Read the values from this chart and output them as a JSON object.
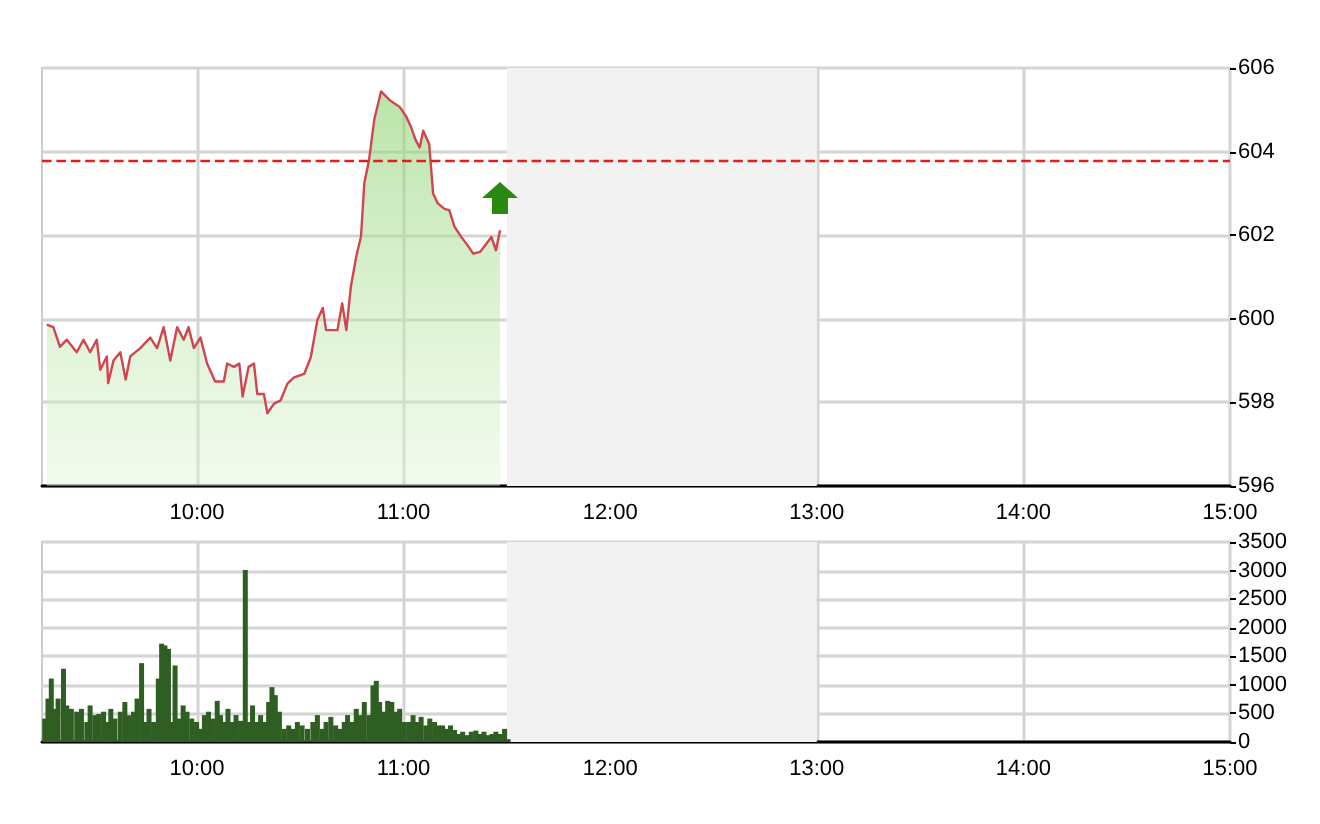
{
  "chart_data": [
    {
      "type": "area",
      "marker": "none",
      "grid": true,
      "x": [
        9.273,
        9.305,
        9.337,
        9.37,
        9.418,
        9.451,
        9.483,
        9.515,
        9.532,
        9.564,
        9.57,
        9.596,
        9.629,
        9.655,
        9.677,
        9.726,
        9.774,
        9.807,
        9.839,
        9.871,
        9.904,
        9.936,
        9.959,
        9.985,
        10.017,
        10.049,
        10.088,
        10.13,
        10.146,
        10.179,
        10.205,
        10.221,
        10.25,
        10.276,
        10.292,
        10.324,
        10.341,
        10.373,
        10.405,
        10.438,
        10.47,
        10.519,
        10.551,
        10.583,
        10.609,
        10.625,
        10.68,
        10.703,
        10.723,
        10.745,
        10.771,
        10.794,
        10.81,
        10.833,
        10.858,
        10.891,
        10.933,
        10.981,
        11.014,
        11.036,
        11.059,
        11.078,
        11.095,
        11.124,
        11.143,
        11.166,
        11.198,
        11.221,
        11.247,
        11.279,
        11.311,
        11.337,
        11.37,
        11.402,
        11.425,
        11.447,
        11.467
      ],
      "series": [
        {
          "color": "#d0454f",
          "values": [
            599.86,
            599.8,
            599.33,
            599.5,
            599.2,
            599.5,
            599.2,
            599.5,
            598.78,
            599.1,
            598.46,
            599.0,
            599.2,
            598.55,
            599.1,
            599.3,
            599.55,
            599.3,
            599.8,
            599.0,
            599.8,
            599.5,
            599.8,
            599.3,
            599.55,
            598.93,
            598.5,
            598.5,
            598.93,
            598.85,
            598.93,
            598.14,
            598.85,
            598.93,
            598.2,
            598.2,
            597.74,
            597.97,
            598.05,
            598.45,
            598.6,
            598.68,
            599.08,
            599.97,
            600.26,
            599.73,
            599.73,
            600.37,
            599.73,
            600.77,
            601.49,
            601.97,
            603.25,
            603.8,
            604.76,
            605.44,
            605.23,
            605.07,
            604.83,
            604.59,
            604.27,
            604.1,
            604.5,
            604.18,
            603.0,
            602.76,
            602.63,
            602.6,
            602.2,
            601.96,
            601.75,
            601.56,
            601.6,
            601.8,
            601.96,
            601.64,
            602.12
          ]
        }
      ],
      "xlim": [
        9.25,
        15
      ],
      "xticks": [
        {
          "value": 10,
          "label": "10:00"
        },
        {
          "value": 11,
          "label": "11:00"
        },
        {
          "value": 12,
          "label": "12:00"
        },
        {
          "value": 13,
          "label": "13:00"
        },
        {
          "value": 14,
          "label": "14:00"
        },
        {
          "value": 15,
          "label": "15:00"
        }
      ],
      "ylim": [
        596,
        606
      ],
      "yticks": [
        596,
        598,
        600,
        602,
        604,
        606
      ],
      "ref_lines": [
        {
          "axis": "y",
          "value": 603.8,
          "color": "#e02020",
          "line_style": "dashed"
        }
      ],
      "bands": [
        {
          "axis": "x",
          "from": 11.5,
          "to": 13,
          "color": "#f2f2f2"
        }
      ]
    },
    {
      "type": "bar",
      "grid": true,
      "x": [
        9.263,
        9.279,
        9.295,
        9.311,
        9.328,
        9.354,
        9.37,
        9.392,
        9.418,
        9.441,
        9.467,
        9.483,
        9.506,
        9.525,
        9.548,
        9.564,
        9.583,
        9.603,
        9.629,
        9.651,
        9.671,
        9.693,
        9.71,
        9.732,
        9.752,
        9.768,
        9.79,
        9.813,
        9.829,
        9.845,
        9.862,
        9.875,
        9.894,
        9.913,
        9.933,
        9.952,
        9.975,
        9.998,
        10.017,
        10.036,
        10.056,
        10.075,
        10.098,
        10.114,
        10.133,
        10.15,
        10.169,
        10.189,
        10.211,
        10.234,
        10.25,
        10.269,
        10.289,
        10.308,
        10.328,
        10.347,
        10.363,
        10.379,
        10.399,
        10.422,
        10.444,
        10.464,
        10.486,
        10.509,
        10.535,
        10.561,
        10.583,
        10.606,
        10.625,
        10.648,
        10.671,
        10.69,
        10.713,
        10.729,
        10.752,
        10.771,
        10.787,
        10.81,
        10.833,
        10.852,
        10.868,
        10.884,
        10.904,
        10.923,
        10.943,
        10.962,
        10.981,
        11.004,
        11.027,
        11.046,
        11.066,
        11.085,
        11.108,
        11.127,
        11.15,
        11.169,
        11.189,
        11.208,
        11.227,
        11.247,
        11.266,
        11.286,
        11.305,
        11.328,
        11.35,
        11.37,
        11.389,
        11.409,
        11.428,
        11.447,
        11.467,
        11.489,
        11.506
      ],
      "series": [
        {
          "color": "#2f5e22",
          "values": [
            410,
            760,
            1110,
            580,
            760,
            1280,
            640,
            580,
            530,
            580,
            350,
            640,
            470,
            490,
            530,
            350,
            580,
            410,
            530,
            700,
            470,
            530,
            760,
            1380,
            350,
            580,
            350,
            1110,
            1720,
            1690,
            1630,
            350,
            1340,
            410,
            640,
            530,
            410,
            350,
            230,
            470,
            530,
            410,
            720,
            470,
            350,
            580,
            350,
            470,
            370,
            3010,
            350,
            640,
            350,
            470,
            350,
            700,
            960,
            820,
            530,
            230,
            290,
            230,
            350,
            290,
            230,
            350,
            470,
            230,
            350,
            440,
            290,
            230,
            350,
            470,
            350,
            580,
            470,
            700,
            470,
            990,
            1070,
            700,
            530,
            720,
            700,
            530,
            580,
            350,
            350,
            470,
            350,
            440,
            290,
            410,
            350,
            290,
            290,
            230,
            290,
            210,
            140,
            180,
            120,
            180,
            200,
            140,
            180,
            120,
            140,
            180,
            140,
            230,
            50
          ]
        }
      ],
      "xlim": [
        9.25,
        15
      ],
      "xticks": [
        {
          "value": 10,
          "label": "10:00"
        },
        {
          "value": 11,
          "label": "11:00"
        },
        {
          "value": 12,
          "label": "12:00"
        },
        {
          "value": 13,
          "label": "13:00"
        },
        {
          "value": 14,
          "label": "14:00"
        },
        {
          "value": 15,
          "label": "15:00"
        }
      ],
      "ylim": [
        0,
        3500
      ],
      "yticks": [
        0,
        500,
        1000,
        1500,
        2000,
        2500,
        3000,
        3500
      ],
      "bands": [
        {
          "axis": "x",
          "from": 11.5,
          "to": 13,
          "color": "#f2f2f2"
        }
      ]
    }
  ]
}
